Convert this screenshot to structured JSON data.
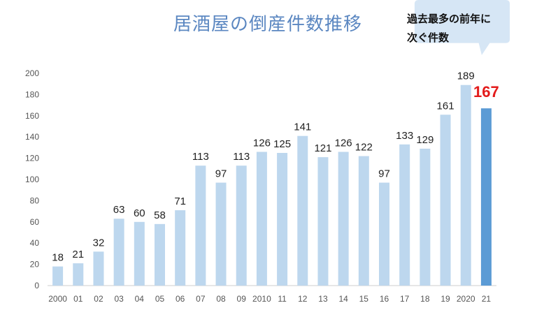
{
  "chart_data": {
    "type": "bar",
    "title": "居酒屋の倒産件数推移",
    "categories": [
      "2000",
      "01",
      "02",
      "03",
      "04",
      "05",
      "06",
      "07",
      "08",
      "09",
      "2010",
      "11",
      "12",
      "13",
      "14",
      "15",
      "16",
      "17",
      "18",
      "19",
      "2020",
      "21"
    ],
    "values": [
      18,
      21,
      32,
      63,
      60,
      58,
      71,
      113,
      97,
      113,
      126,
      125,
      141,
      121,
      126,
      122,
      97,
      133,
      129,
      161,
      189,
      167
    ],
    "highlight_index": 21,
    "ylim": [
      0,
      200
    ],
    "yticks": [
      0,
      20,
      40,
      60,
      80,
      100,
      120,
      140,
      160,
      180,
      200
    ],
    "xlabel": "",
    "ylabel": "",
    "grid": false,
    "colors": {
      "bar": "#bdd7ee",
      "highlight": "#5b9bd5",
      "highlight_label": "#e31b1b",
      "title": "#5b87c1",
      "callout": "#d6e6f5"
    },
    "annotation": {
      "line1": "過去最多の前年に",
      "line2": "次ぐ件数"
    }
  }
}
